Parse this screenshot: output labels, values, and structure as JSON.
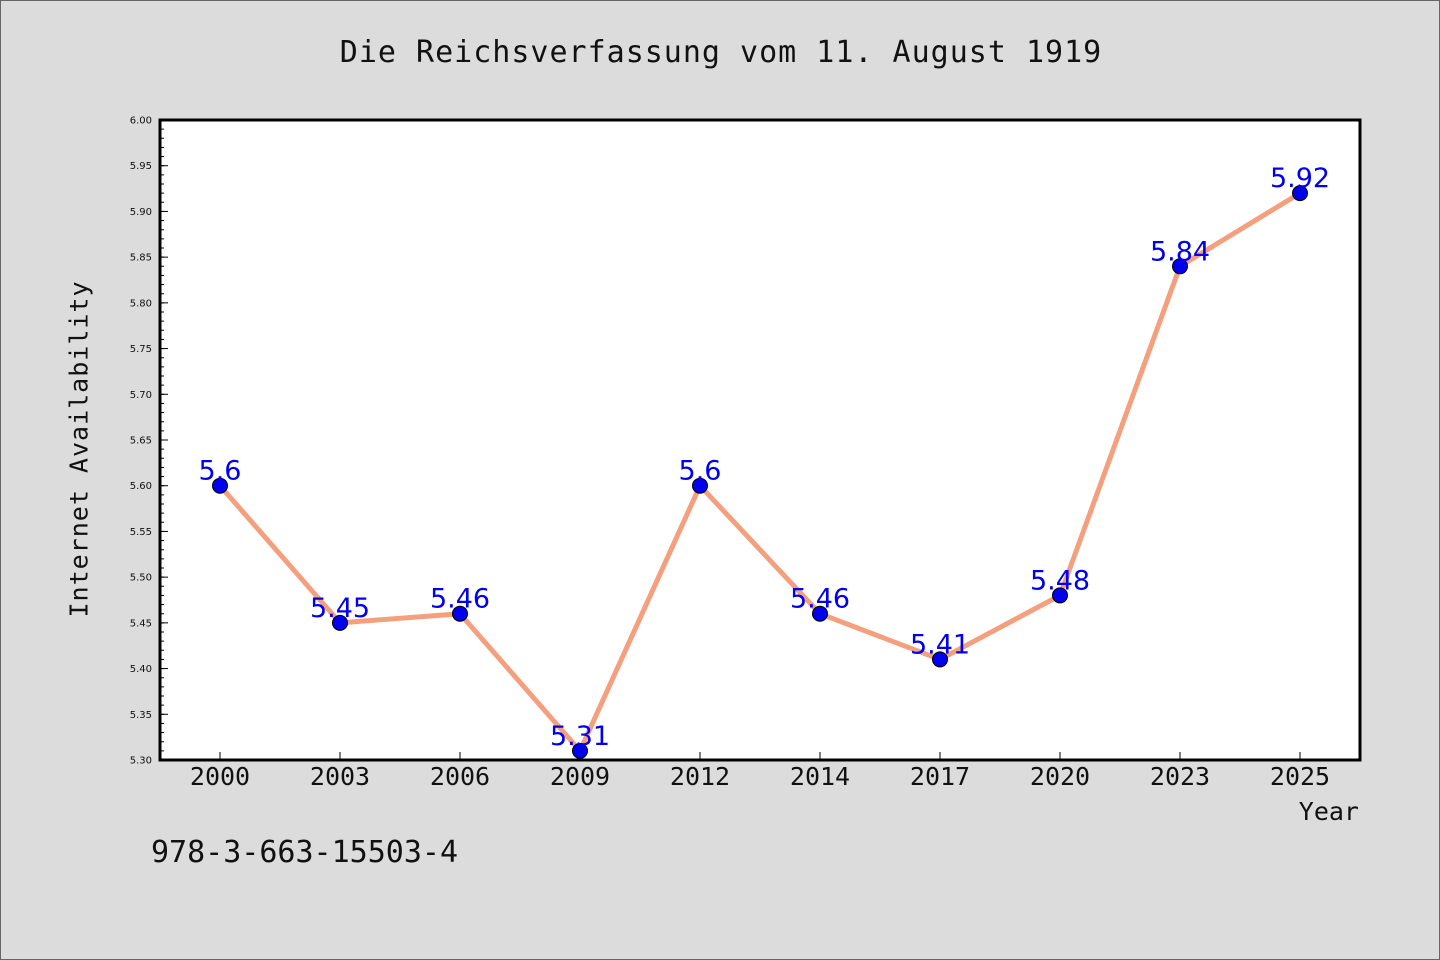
{
  "chart_data": {
    "type": "line",
    "title": "Die Reichsverfassung vom 11. August 1919",
    "xlabel": "Year",
    "ylabel": "Internet Availability",
    "categories": [
      "2000",
      "2003",
      "2006",
      "2009",
      "2012",
      "2014",
      "2017",
      "2020",
      "2023",
      "2025"
    ],
    "values": [
      5.6,
      5.45,
      5.46,
      5.31,
      5.6,
      5.46,
      5.41,
      5.48,
      5.84,
      5.92
    ],
    "data_labels": [
      "5.6",
      "5.45",
      "5.46",
      "5.31",
      "5.6",
      "5.46",
      "5.41",
      "5.48",
      "5.84",
      "5.92"
    ],
    "ylim": [
      5.3,
      6.0
    ],
    "yticks": [
      "5.30",
      "5.35",
      "5.40",
      "5.45",
      "5.50",
      "5.55",
      "5.60",
      "5.65",
      "5.70",
      "5.75",
      "5.80",
      "5.85",
      "5.90",
      "5.95",
      "6.00"
    ],
    "grid": false,
    "line_color": "#f4a07e",
    "marker_color": "#0000ee",
    "label_color": "#0000ee",
    "plot_background": "#ffffff",
    "figure_background": "#dcdcdc"
  },
  "footnote": "978-3-663-15503-4"
}
